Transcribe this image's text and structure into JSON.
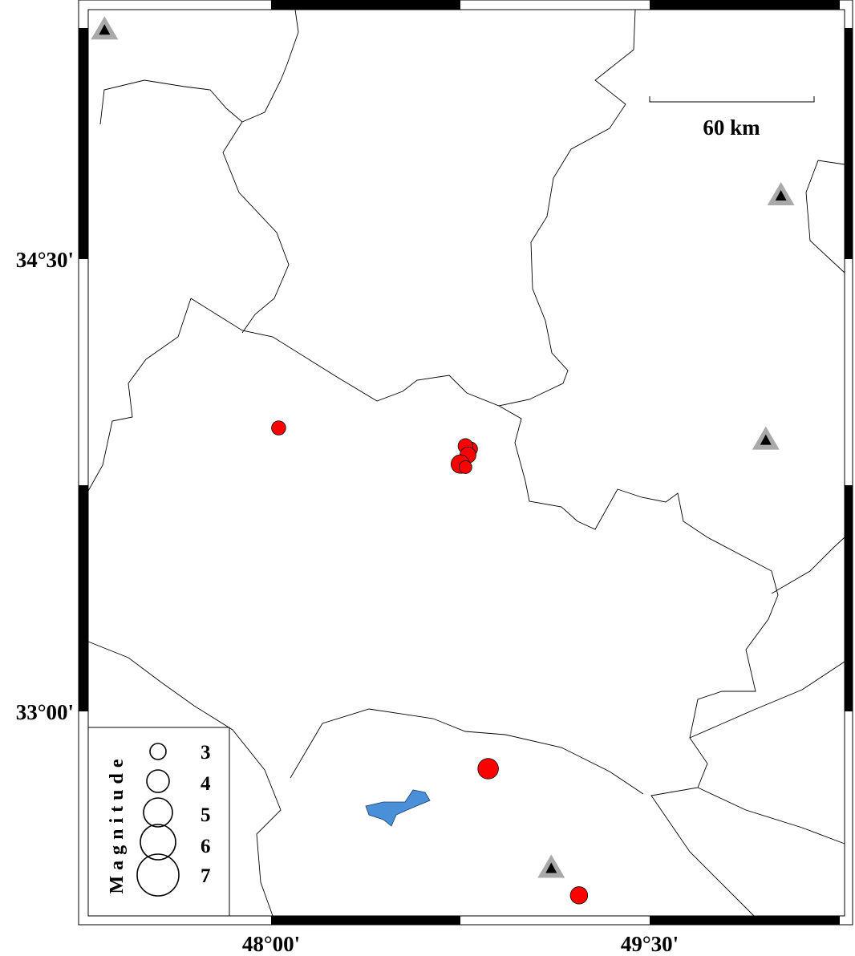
{
  "map": {
    "axes": {
      "x_ticks": [
        {
          "label": "48°00'",
          "lon": 48.0
        },
        {
          "label": "49°30'",
          "lon": 49.5
        }
      ],
      "y_ticks": [
        {
          "label": "34°30'",
          "lat": 34.5
        },
        {
          "label": "33°00'",
          "lat": 33.0
        }
      ]
    },
    "scale_bar": {
      "label": "60 km"
    },
    "legend": {
      "title": "Magnitude",
      "items": [
        {
          "mag": 3,
          "label": "3"
        },
        {
          "mag": 4,
          "label": "4"
        },
        {
          "mag": 5,
          "label": "5"
        },
        {
          "mag": 6,
          "label": "6"
        },
        {
          "mag": 7,
          "label": "7"
        }
      ]
    },
    "events": [
      {
        "lon": 48.03,
        "lat": 33.94,
        "mag": 2.7
      },
      {
        "lon": 48.79,
        "lat": 33.87,
        "mag": 2.7
      },
      {
        "lon": 48.77,
        "lat": 33.88,
        "mag": 2.8
      },
      {
        "lon": 48.78,
        "lat": 33.85,
        "mag": 3.0
      },
      {
        "lon": 48.75,
        "lat": 33.82,
        "mag": 3.4
      },
      {
        "lon": 48.77,
        "lat": 33.81,
        "mag": 2.5
      },
      {
        "lon": 48.86,
        "lat": 32.81,
        "mag": 3.7
      },
      {
        "lon": 49.22,
        "lat": 32.39,
        "mag": 3.2
      }
    ],
    "stations": [
      {
        "lon": 47.34,
        "lat": 35.26
      },
      {
        "lon": 50.02,
        "lat": 34.71
      },
      {
        "lon": 49.96,
        "lat": 33.9
      },
      {
        "lon": 49.11,
        "lat": 32.48
      }
    ],
    "colors": {
      "event": "#ff0000",
      "station_halo": "#a9a9a9",
      "station": "#000000",
      "water": "#4a90d9"
    }
  }
}
